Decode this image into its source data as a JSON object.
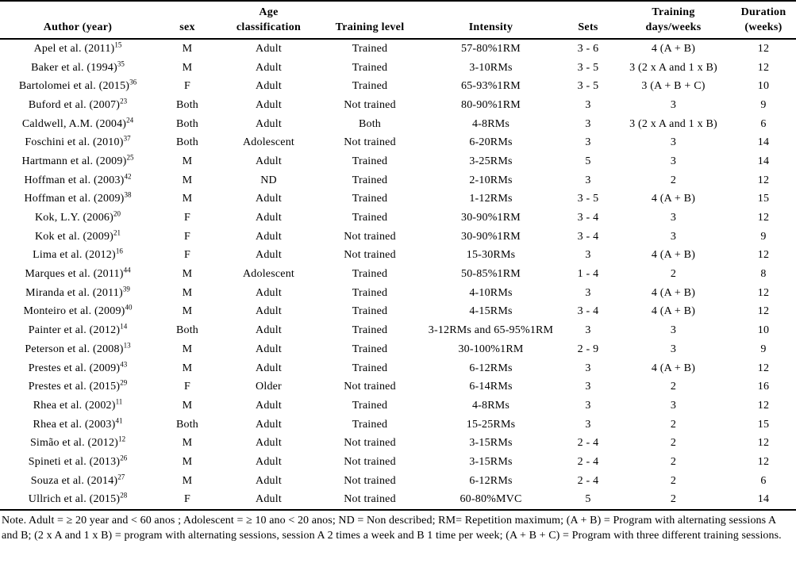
{
  "colors": {
    "text": "#000000",
    "background": "#ffffff",
    "rule": "#000000"
  },
  "table": {
    "columns": [
      {
        "label": "Author (year)"
      },
      {
        "label": "sex"
      },
      {
        "label": "Age\nclassification"
      },
      {
        "label": "Training level"
      },
      {
        "label": "Intensity"
      },
      {
        "label": "Sets"
      },
      {
        "label": "Training\ndays/weeks"
      },
      {
        "label": "Duration\n(weeks)"
      }
    ],
    "rows": [
      {
        "author": "Apel et al. (2011)",
        "ref": "15",
        "sex": "M",
        "age": "Adult",
        "level": "Trained",
        "intensity": "57-80%1RM",
        "sets": "3 - 6",
        "days": "4 (A + B)",
        "duration": "12"
      },
      {
        "author": "Baker et al. (1994)",
        "ref": "35",
        "sex": "M",
        "age": "Adult",
        "level": "Trained",
        "intensity": "3-10RMs",
        "sets": "3 - 5",
        "days": "3 (2 x A and 1 x B)",
        "duration": "12"
      },
      {
        "author": "Bartolomei et al. (2015)",
        "ref": "36",
        "sex": "F",
        "age": "Adult",
        "level": "Trained",
        "intensity": "65-93%1RM",
        "sets": "3 - 5",
        "days": "3 (A + B + C)",
        "duration": "10"
      },
      {
        "author": "Buford et al. (2007)",
        "ref": "23",
        "sex": "Both",
        "age": "Adult",
        "level": "Not trained",
        "intensity": "80-90%1RM",
        "sets": "3",
        "days": "3",
        "duration": "9"
      },
      {
        "author": "Caldwell, A.M. (2004)",
        "ref": "24",
        "sex": "Both",
        "age": "Adult",
        "level": "Both",
        "intensity": "4-8RMs",
        "sets": "3",
        "days": "3 (2 x A and 1 x B)",
        "duration": "6"
      },
      {
        "author": "Foschini et al. (2010)",
        "ref": "37",
        "sex": "Both",
        "age": "Adolescent",
        "level": "Not trained",
        "intensity": "6-20RMs",
        "sets": "3",
        "days": "3",
        "duration": "14"
      },
      {
        "author": "Hartmann et al. (2009)",
        "ref": "25",
        "sex": "M",
        "age": "Adult",
        "level": "Trained",
        "intensity": "3-25RMs",
        "sets": "5",
        "days": "3",
        "duration": "14"
      },
      {
        "author": "Hoffman et al. (2003)",
        "ref": "42",
        "sex": "M",
        "age": "ND",
        "level": "Trained",
        "intensity": "2-10RMs",
        "sets": "3",
        "days": "2",
        "duration": "12"
      },
      {
        "author": "Hoffman et al. (2009)",
        "ref": "38",
        "sex": "M",
        "age": "Adult",
        "level": "Trained",
        "intensity": "1-12RMs",
        "sets": "3 - 5",
        "days": "4 (A + B)",
        "duration": "15"
      },
      {
        "author": "Kok, L.Y. (2006)",
        "ref": "20",
        "sex": "F",
        "age": "Adult",
        "level": "Trained",
        "intensity": "30-90%1RM",
        "sets": "3 - 4",
        "days": "3",
        "duration": "12"
      },
      {
        "author": "Kok et al. (2009)",
        "ref": "21",
        "sex": "F",
        "age": "Adult",
        "level": "Not trained",
        "intensity": "30-90%1RM",
        "sets": "3 - 4",
        "days": "3",
        "duration": "9"
      },
      {
        "author": "Lima et al. (2012)",
        "ref": "16",
        "sex": "F",
        "age": "Adult",
        "level": "Not trained",
        "intensity": "15-30RMs",
        "sets": "3",
        "days": "4 (A + B)",
        "duration": "12"
      },
      {
        "author": "Marques et al. (2011)",
        "ref": "44",
        "sex": "M",
        "age": "Adolescent",
        "level": "Trained",
        "intensity": "50-85%1RM",
        "sets": "1 - 4",
        "days": "2",
        "duration": "8"
      },
      {
        "author": "Miranda et al. (2011)",
        "ref": "39",
        "sex": "M",
        "age": "Adult",
        "level": "Trained",
        "intensity": "4-10RMs",
        "sets": "3",
        "days": "4 (A + B)",
        "duration": "12"
      },
      {
        "author": "Monteiro et al. (2009)",
        "ref": "40",
        "sex": "M",
        "age": "Adult",
        "level": "Trained",
        "intensity": "4-15RMs",
        "sets": "3 - 4",
        "days": "4 (A + B)",
        "duration": "12"
      },
      {
        "author": "Painter et al. (2012)",
        "ref": "14",
        "sex": "Both",
        "age": "Adult",
        "level": "Trained",
        "intensity": "3-12RMs and 65-95%1RM",
        "sets": "3",
        "days": "3",
        "duration": "10"
      },
      {
        "author": "Peterson et al. (2008)",
        "ref": "13",
        "sex": "M",
        "age": "Adult",
        "level": "Trained",
        "intensity": "30-100%1RM",
        "sets": "2 - 9",
        "days": "3",
        "duration": "9"
      },
      {
        "author": "Prestes et al. (2009)",
        "ref": "43",
        "sex": "M",
        "age": "Adult",
        "level": "Trained",
        "intensity": "6-12RMs",
        "sets": "3",
        "days": "4 (A + B)",
        "duration": "12"
      },
      {
        "author": "Prestes et al. (2015)",
        "ref": "29",
        "sex": "F",
        "age": "Older",
        "level": "Not trained",
        "intensity": "6-14RMs",
        "sets": "3",
        "days": "2",
        "duration": "16"
      },
      {
        "author": "Rhea et al. (2002)",
        "ref": "11",
        "sex": "M",
        "age": "Adult",
        "level": "Trained",
        "intensity": "4-8RMs",
        "sets": "3",
        "days": "3",
        "duration": "12"
      },
      {
        "author": "Rhea et al. (2003)",
        "ref": "41",
        "sex": "Both",
        "age": "Adult",
        "level": "Trained",
        "intensity": "15-25RMs",
        "sets": "3",
        "days": "2",
        "duration": "15"
      },
      {
        "author": "Simão et al. (2012)",
        "ref": "12",
        "sex": "M",
        "age": "Adult",
        "level": "Not trained",
        "intensity": "3-15RMs",
        "sets": "2 - 4",
        "days": "2",
        "duration": "12"
      },
      {
        "author": "Spineti et al. (2013)",
        "ref": "26",
        "sex": "M",
        "age": "Adult",
        "level": "Not trained",
        "intensity": "3-15RMs",
        "sets": "2 - 4",
        "days": "2",
        "duration": "12"
      },
      {
        "author": "Souza et al. (2014)",
        "ref": "27",
        "sex": "M",
        "age": "Adult",
        "level": "Not trained",
        "intensity": "6-12RMs",
        "sets": "2 - 4",
        "days": "2",
        "duration": "6"
      },
      {
        "author": "Ullrich et al. (2015)",
        "ref": "28",
        "sex": "F",
        "age": "Adult",
        "level": "Not trained",
        "intensity": "60-80%MVC",
        "sets": "5",
        "days": "2",
        "duration": "14"
      }
    ]
  },
  "note": "Note. Adult = ≥ 20 year and < 60 anos ; Adolescent = ≥ 10 ano < 20 anos; ND = Non described; RM= Repetition maximum; (A + B) = Program with alternating sessions A and B; (2 x A and 1 x B) = program with alternating sessions, session A 2 times a week and B 1 time per week; (A + B + C) = Program with three different training sessions."
}
